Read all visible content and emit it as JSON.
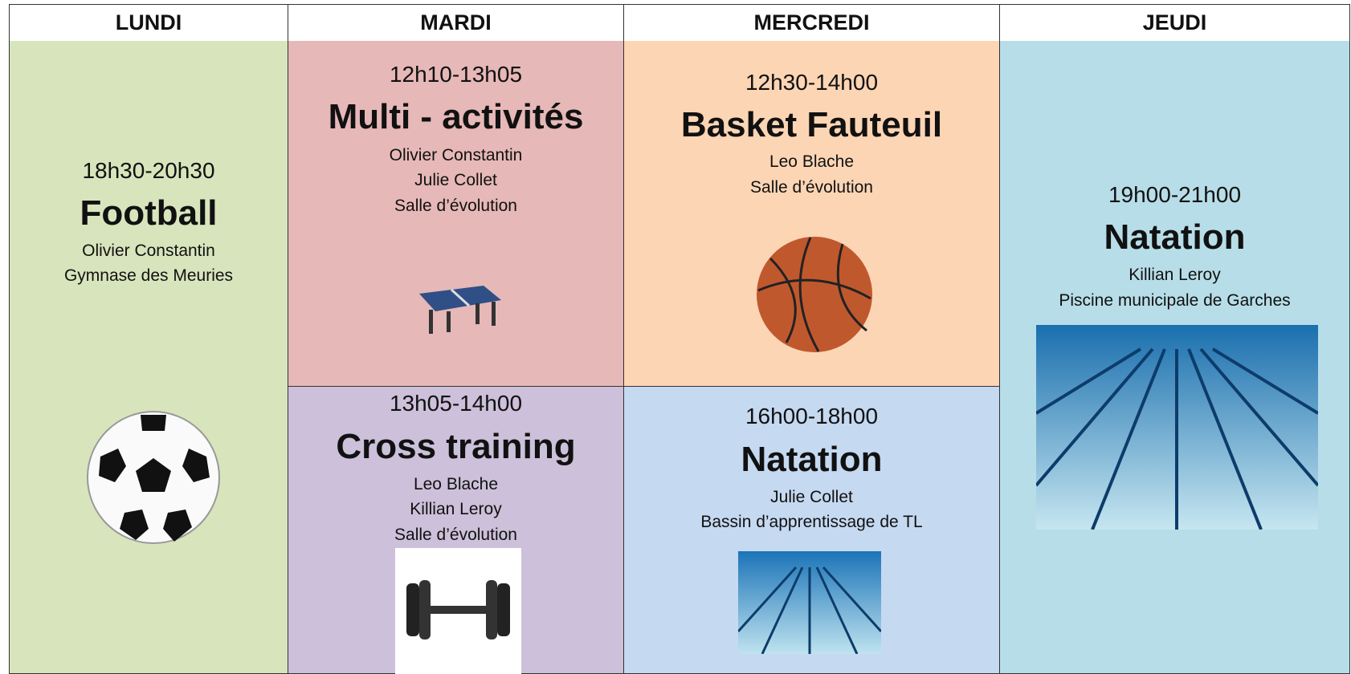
{
  "schedule": [
    {
      "day": "LUNDI",
      "activities": [
        {
          "time": "18h30-20h30",
          "title": "Football",
          "details": [
            "Olivier Constantin",
            "Gymnase des Meuries"
          ]
        }
      ]
    },
    {
      "day": "MARDI",
      "activities": [
        {
          "time": "12h10-13h05",
          "title": "Multi - activités",
          "details": [
            "Olivier Constantin",
            "Julie Collet",
            "Salle d’évolution"
          ]
        },
        {
          "time": "13h05-14h00",
          "title": "Cross training",
          "details": [
            "Leo Blache",
            "Killian Leroy",
            "Salle d’évolution"
          ]
        }
      ]
    },
    {
      "day": "MERCREDI",
      "activities": [
        {
          "time": "12h30-14h00",
          "title": "Basket Fauteuil",
          "details": [
            "Leo Blache",
            "Salle d’évolution"
          ]
        },
        {
          "time": "16h00-18h00",
          "title": "Natation",
          "details": [
            "Julie Collet",
            "Bassin d’apprentissage de TL"
          ]
        }
      ]
    },
    {
      "day": "JEUDI",
      "activities": [
        {
          "time": "19h00-21h00",
          "title": "Natation",
          "details": [
            "Killian Leroy",
            "Piscine municipale de Garches"
          ]
        }
      ]
    }
  ]
}
